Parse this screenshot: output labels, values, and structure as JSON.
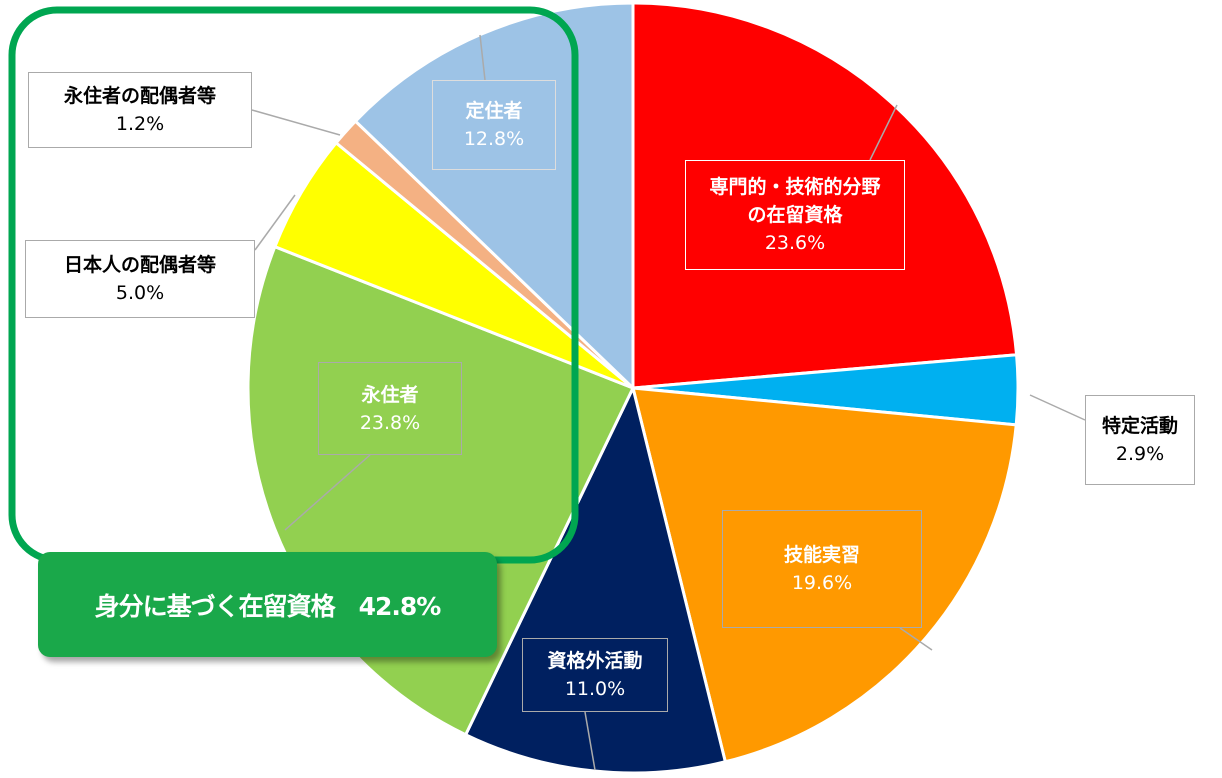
{
  "chart_data": {
    "type": "pie",
    "categories": [
      "専門的・技術的分野の在留資格",
      "特定活動",
      "技能実習",
      "資格外活動",
      "永住者",
      "日本人の配偶者等",
      "永住者の配偶者等",
      "定住者"
    ],
    "values": [
      23.6,
      2.9,
      19.6,
      11.0,
      23.8,
      5.0,
      1.2,
      12.8
    ],
    "value_labels": [
      "23.6%",
      "2.9%",
      "19.6%",
      "11.0%",
      "23.8%",
      "5.0%",
      "1.2%",
      "12.8%"
    ],
    "colors": [
      "#ff0000",
      "#00b0f0",
      "#ff9900",
      "#002060",
      "#92d050",
      "#ffff00",
      "#f4b183",
      "#9dc3e6"
    ],
    "annotations": [
      "身分に基づく在留資格　42.8%"
    ]
  }
}
